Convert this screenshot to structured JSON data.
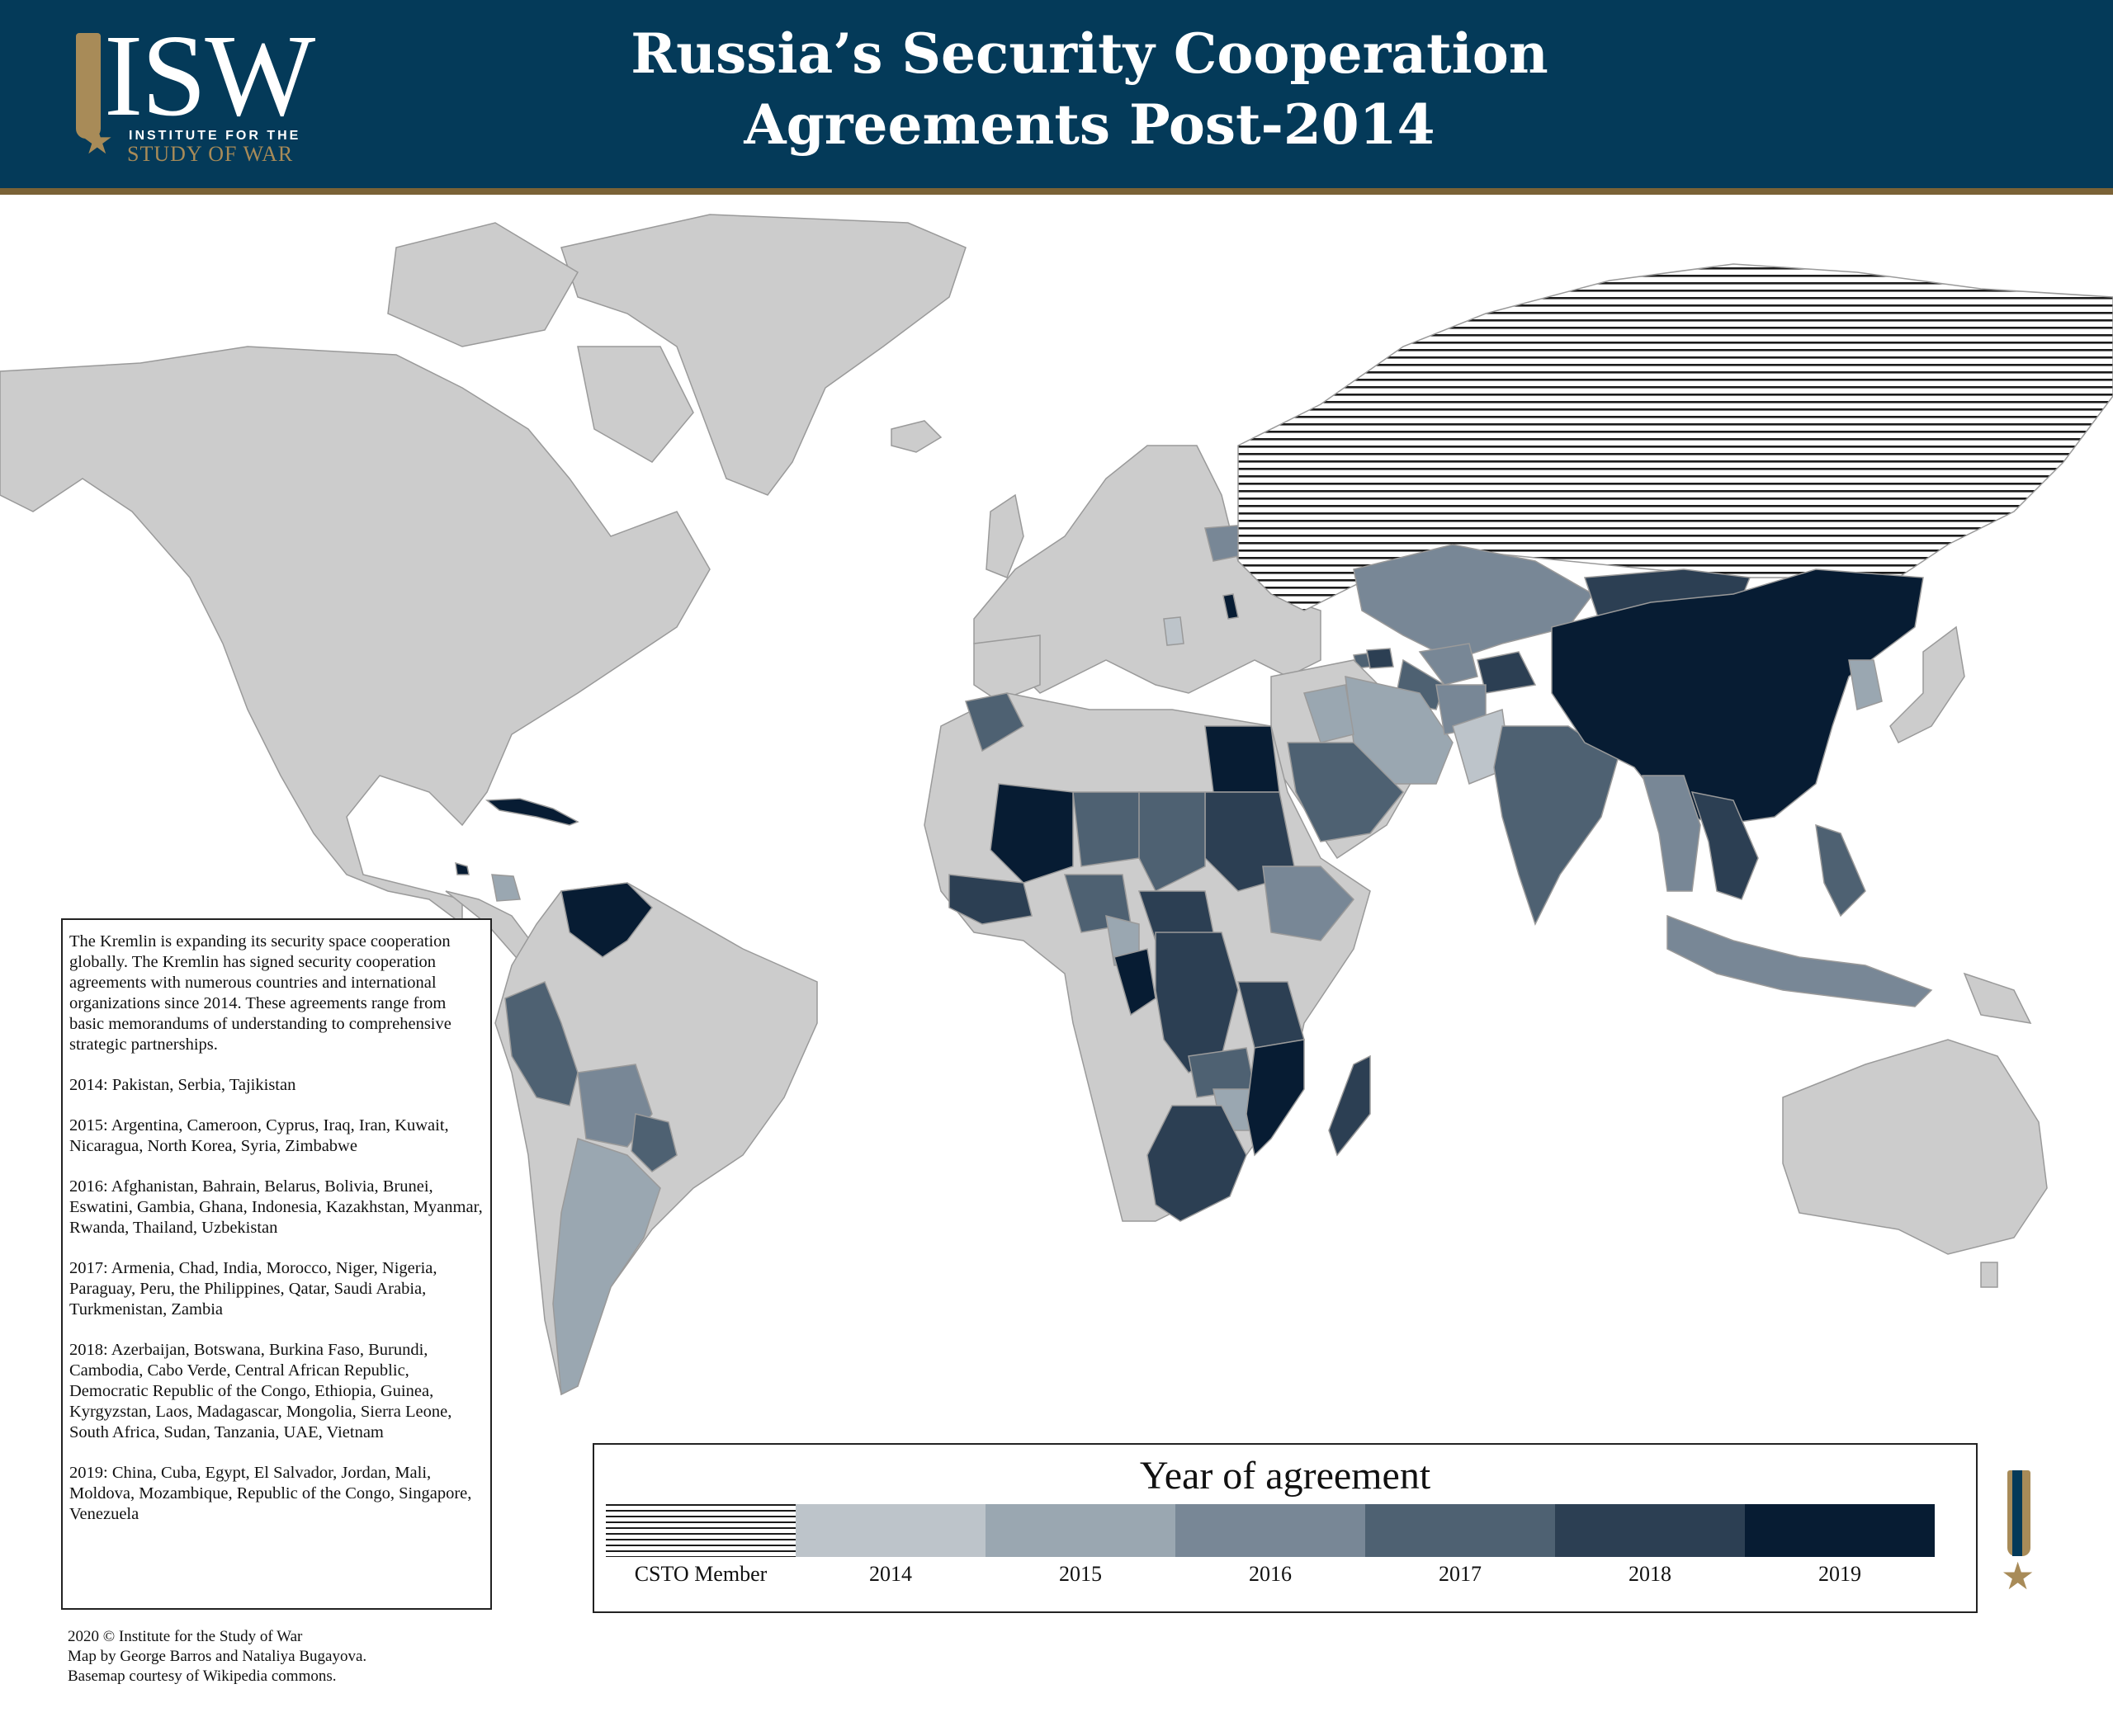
{
  "header": {
    "logo_text": "ISW",
    "logo_line1": "INSTITUTE FOR THE",
    "logo_line2": "STUDY OF WAR",
    "title_line1": "Russia’s Security Cooperation",
    "title_line2": "Agreements Post-2014"
  },
  "colors": {
    "header_bg": "#043a59",
    "gold": "#a88b58",
    "land_default": "#cccccc",
    "csto": "hatched",
    "y2014": "#bdc4ca",
    "y2015": "#9aa7b1",
    "y2016": "#788796",
    "y2017": "#4e6172",
    "y2018": "#2c3f53",
    "y2019": "#071c33"
  },
  "info": {
    "intro": "The Kremlin is expanding its security space cooperation globally. The Kremlin has signed security cooperation agreements with numerous countries and international organizations since 2014. These agreements range from basic memorandums of understanding to comprehensive strategic partnerships.",
    "y2014": "2014: Pakistan, Serbia, Tajikistan",
    "y2015": "2015: Argentina, Cameroon, Cyprus, Iraq, Iran, Kuwait, Nicaragua, North Korea, Syria, Zimbabwe",
    "y2016": "2016: Afghanistan, Bahrain, Belarus, Bolivia, Brunei, Eswatini, Gambia, Ghana, Indonesia, Kazakhstan, Myanmar, Rwanda, Thailand, Uzbekistan",
    "y2017": "2017: Armenia, Chad, India, Morocco, Niger, Nigeria, Paraguay, Peru, the Philippines, Qatar, Saudi Arabia, Turkmenistan, Zambia",
    "y2018": "2018: Azerbaijan, Botswana, Burkina Faso, Burundi, Cambodia, Cabo Verde, Central African Republic, Democratic Republic of the Congo, Ethiopia, Guinea, Kyrgyzstan, Laos, Madagascar, Mongolia, Sierra Leone, South Africa, Sudan, Tanzania, UAE, Vietnam",
    "y2019": "2019: China, Cuba, Egypt, El Salvador, Jordan, Mali, Moldova, Mozambique, Republic of the Congo, Singapore, Venezuela"
  },
  "credits": {
    "line1": "2020 © Institute for the Study of War",
    "line2": "Map by George Barros and Nataliya Bugayova.",
    "line3": "Basemap courtesy of Wikipedia commons."
  },
  "legend": {
    "title": "Year of agreement",
    "items": [
      {
        "label": "CSTO Member",
        "color": "hatched"
      },
      {
        "label": "2014",
        "color": "#bdc4ca"
      },
      {
        "label": "2015",
        "color": "#9aa7b1"
      },
      {
        "label": "2016",
        "color": "#788796"
      },
      {
        "label": "2017",
        "color": "#4e6172"
      },
      {
        "label": "2018",
        "color": "#2c3f53"
      },
      {
        "label": "2019",
        "color": "#071c33"
      }
    ]
  }
}
